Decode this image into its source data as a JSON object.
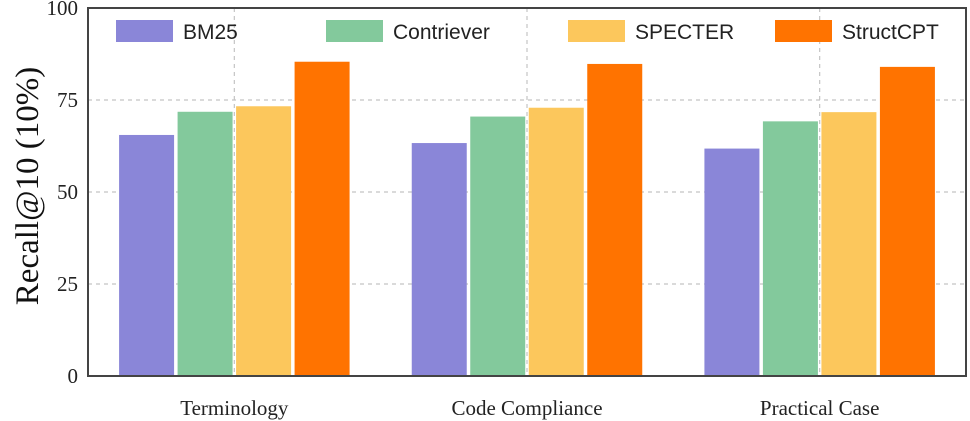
{
  "chart_data": {
    "type": "bar",
    "title": "",
    "xlabel": "",
    "ylabel": "Recall@10 (10%)",
    "ylim": [
      0,
      100
    ],
    "yticks": [
      0,
      25,
      50,
      75,
      100
    ],
    "grid": true,
    "legend_position": "top",
    "categories": [
      "Terminology",
      "Code Compliance",
      "Practical Case"
    ],
    "series": [
      {
        "name": "BM25",
        "color": "#8a86d8",
        "values": [
          65.5,
          63.3,
          61.8
        ]
      },
      {
        "name": "Contriever",
        "color": "#83c99c",
        "values": [
          71.8,
          70.5,
          69.2
        ]
      },
      {
        "name": "SPECTER",
        "color": "#fcc75c",
        "values": [
          73.3,
          72.9,
          71.7
        ]
      },
      {
        "name": "StructCPT",
        "color": "#ff7300",
        "values": [
          85.4,
          84.8,
          84.0
        ]
      }
    ]
  }
}
